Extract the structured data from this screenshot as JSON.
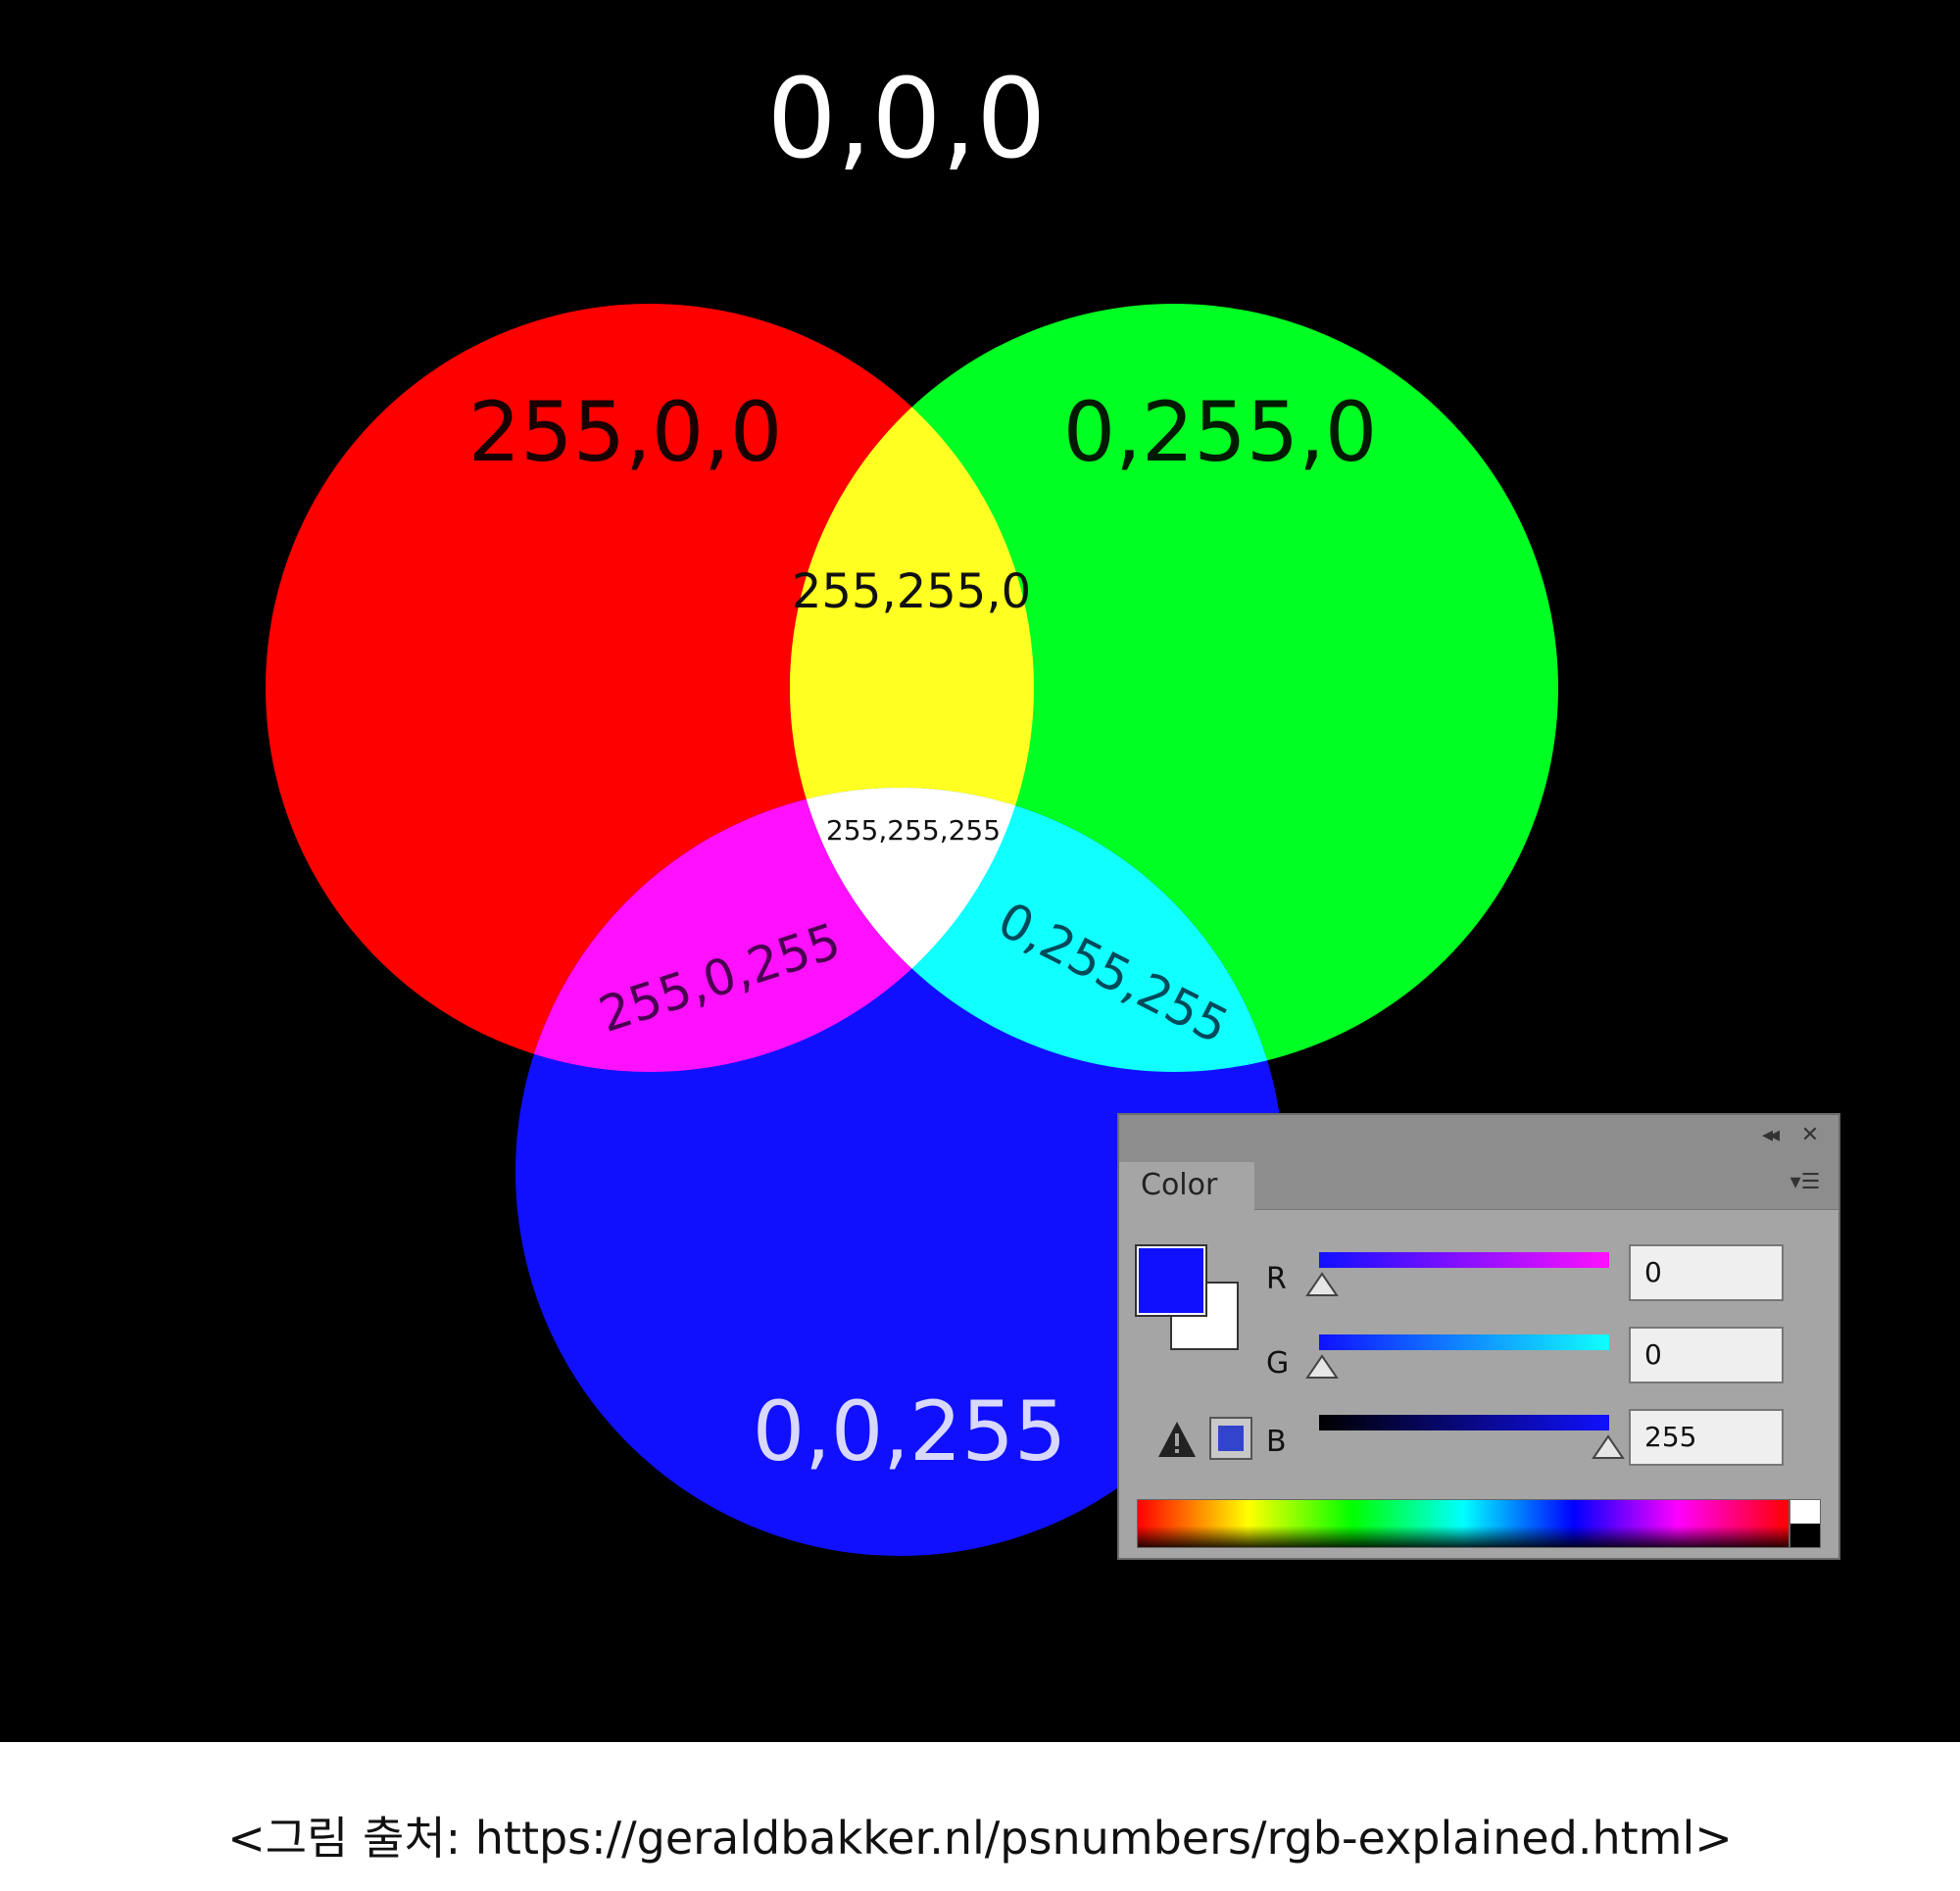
{
  "diagram": {
    "top_label": "0,0,0",
    "red_label": "255,0,0",
    "green_label": "0,255,0",
    "blue_label": "0,0,255",
    "yellow_label": "255,255,0",
    "magenta_label": "255,0,255",
    "cyan_label": "0,255,255",
    "white_label": "255,255,255",
    "colors": {
      "background": "#000000",
      "red": "#ff0000",
      "green": "#00ff22",
      "blue": "#1010ff",
      "yellow": "#ffff22",
      "magenta": "#ff10ff",
      "cyan": "#10ffff",
      "white": "#ffffff"
    }
  },
  "color_panel": {
    "tab_label": "Color",
    "collapse_icon": "double-chevron-left-icon",
    "close_icon": "close-icon",
    "menu_icon": "panel-menu-icon",
    "foreground_color": "#1010ff",
    "background_color": "#ffffff",
    "channels": [
      {
        "label": "R",
        "value": "0"
      },
      {
        "label": "G",
        "value": "0"
      },
      {
        "label": "B",
        "value": "255"
      }
    ],
    "warning_icon": "out-of-gamut-warning-icon"
  },
  "caption": "<그림 출처: https://geraldbakker.nl/psnumbers/rgb-explained.html>"
}
